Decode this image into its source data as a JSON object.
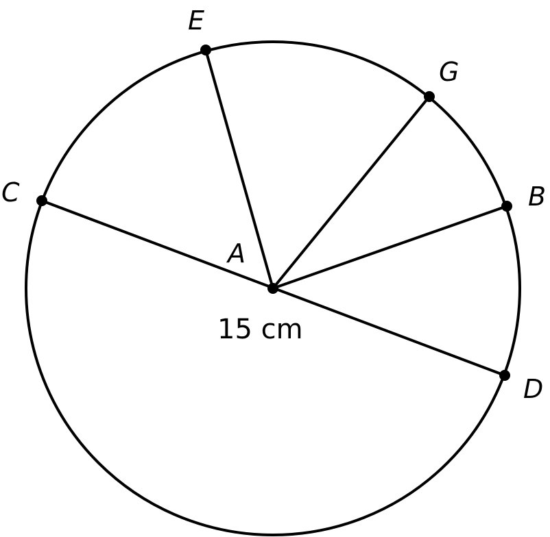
{
  "colors": {
    "stroke": "#000000",
    "background": "#ffffff"
  },
  "labels": {
    "center": "A",
    "C": "C",
    "E": "E",
    "G": "G",
    "B": "B",
    "D": "D",
    "measure": "15 cm"
  }
}
